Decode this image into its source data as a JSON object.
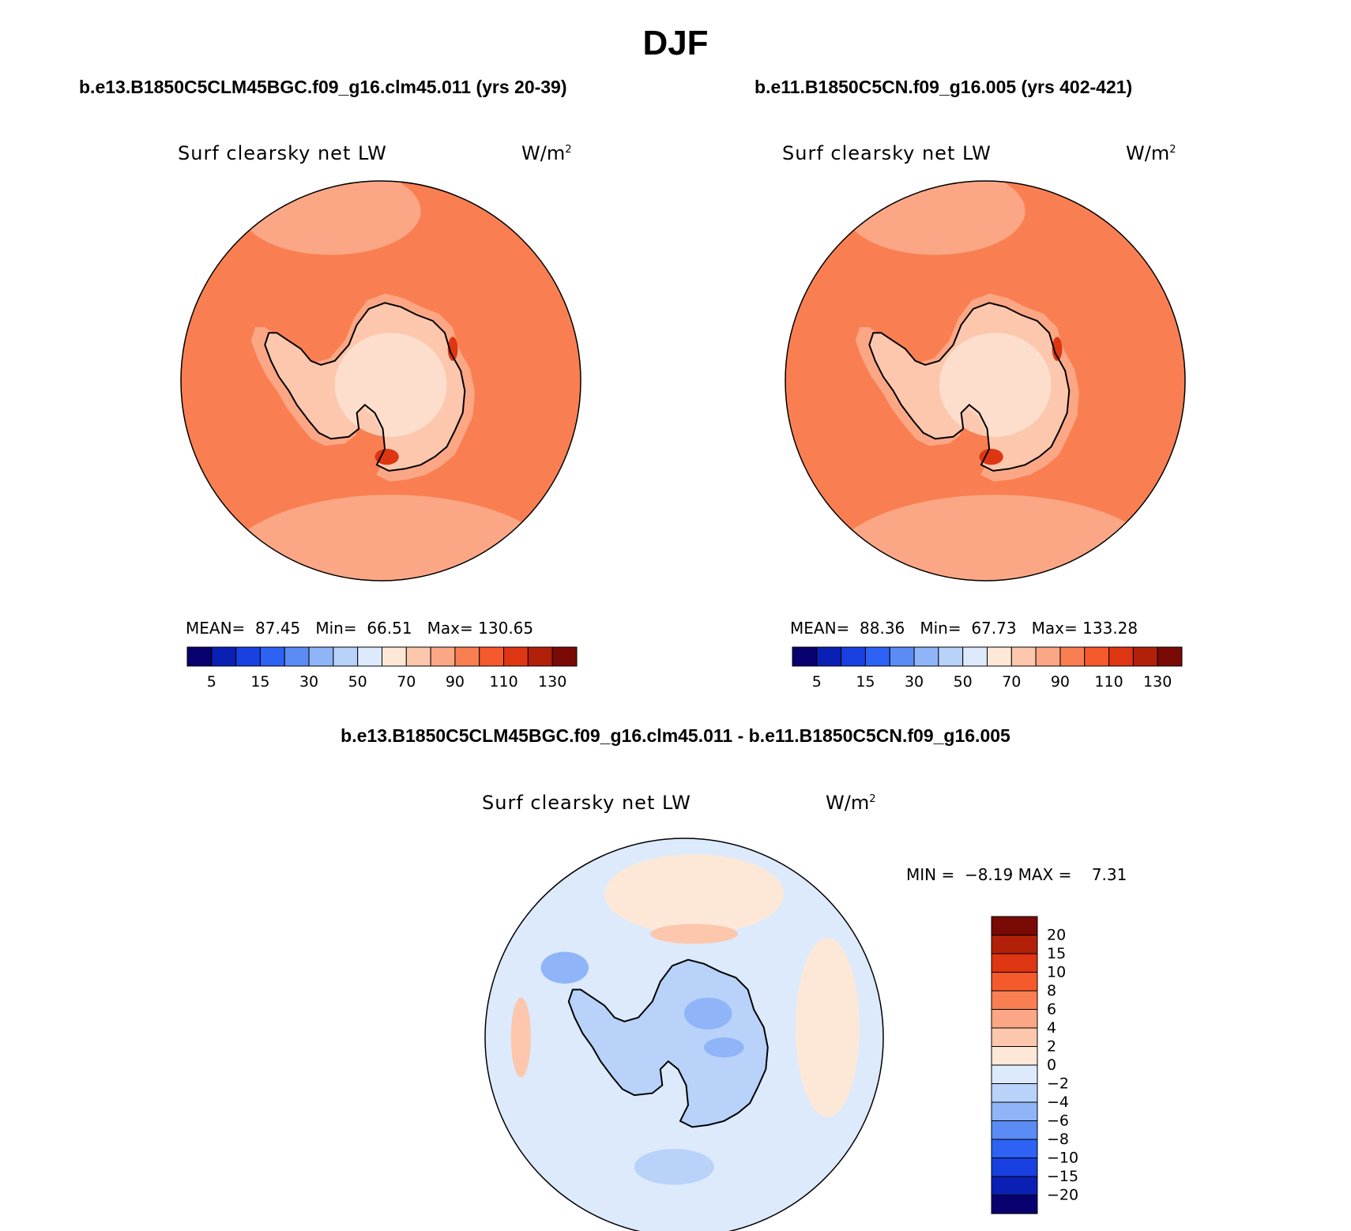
{
  "figure": {
    "season": "DJF",
    "panel_top_left_title": "b.e13.B1850C5CLM45BGC.f09_g16.clm45.011 (yrs 20-39)",
    "panel_top_right_title": "b.e11.B1850C5CN.f09_g16.005 (yrs 402-421)",
    "panel_bottom_title": "b.e13.B1850C5CLM45BGC.f09_g16.clm45.011 - b.e11.B1850C5CN.f09_g16.005"
  },
  "chart_data": [
    {
      "type": "heatmap",
      "projection": "south polar stereographic",
      "variable": "Surf clearsky net LW",
      "units": "W/m",
      "units_sup": "2",
      "stats": {
        "mean_label": "MEAN=",
        "mean": "87.45",
        "min_label": "Min=",
        "min": "66.51",
        "max_label": "Max=",
        "max": "130.65"
      },
      "levels": [
        "5",
        "15",
        "30",
        "50",
        "70",
        "90",
        "110",
        "130"
      ],
      "colors": [
        "#08006e",
        "#0a1fb4",
        "#1840e0",
        "#2d62f5",
        "#5b8bf5",
        "#8fb4f7",
        "#b8d2fa",
        "#dceafc",
        "#fde8d8",
        "#fcc7ad",
        "#fba785",
        "#f97f52",
        "#f55a2c",
        "#de3512",
        "#b2200a",
        "#7a0a05"
      ],
      "fields": {
        "ocean": "#f97f52",
        "ocean_far": "#fba785",
        "land": "#fcc7ad",
        "interior": "#fde8d8",
        "hotspot": "#de3512"
      }
    },
    {
      "type": "heatmap",
      "projection": "south polar stereographic",
      "variable": "Surf clearsky net LW",
      "units": "W/m",
      "units_sup": "2",
      "stats": {
        "mean_label": "MEAN=",
        "mean": "88.36",
        "min_label": "Min=",
        "min": "67.73",
        "max_label": "Max=",
        "max": "133.28"
      },
      "levels": [
        "5",
        "15",
        "30",
        "50",
        "70",
        "90",
        "110",
        "130"
      ],
      "colors": [
        "#08006e",
        "#0a1fb4",
        "#1840e0",
        "#2d62f5",
        "#5b8bf5",
        "#8fb4f7",
        "#b8d2fa",
        "#dceafc",
        "#fde8d8",
        "#fcc7ad",
        "#fba785",
        "#f97f52",
        "#f55a2c",
        "#de3512",
        "#b2200a",
        "#7a0a05"
      ],
      "fields": {
        "ocean": "#f97f52",
        "ocean_far": "#fba785",
        "land": "#fcc7ad",
        "interior": "#fde8d8",
        "hotspot": "#de3512"
      }
    },
    {
      "type": "heatmap",
      "projection": "south polar stereographic",
      "variable": "Surf clearsky net LW",
      "units": "W/m",
      "units_sup": "2",
      "stats": {
        "min_label": "MIN =",
        "min": "−8.19",
        "max_label": "MAX =",
        "max": "7.31"
      },
      "levels": [
        "20",
        "15",
        "10",
        "8",
        "6",
        "4",
        "2",
        "0",
        "−2",
        "−4",
        "−6",
        "−8",
        "−10",
        "−15",
        "−20"
      ],
      "colors_top_to_bottom": [
        "#7a0a05",
        "#b2200a",
        "#de3512",
        "#f55a2c",
        "#f97f52",
        "#fba785",
        "#fcc7ad",
        "#fde8d8",
        "#dceafc",
        "#b8d2fa",
        "#8fb4f7",
        "#5b8bf5",
        "#2d62f5",
        "#1840e0",
        "#0a1fb4",
        "#08006e"
      ],
      "fields": {
        "ocean": "#dceafc",
        "land": "#b8d2fa",
        "warm_patch": "#fde8d8",
        "warm_edge": "#fcc7ad",
        "cold_patch": "#8fb4f7"
      }
    }
  ]
}
